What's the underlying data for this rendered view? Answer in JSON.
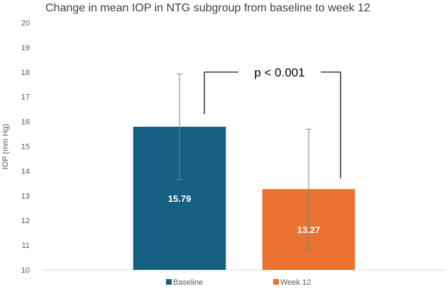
{
  "chart_data": {
    "type": "bar",
    "title": "Change in mean IOP in NTG subgroup from baseline to week 12",
    "xlabel": "",
    "ylabel": "IOP (mm Hg)",
    "ylim": [
      10,
      20
    ],
    "yticks": [
      10,
      11,
      12,
      13,
      14,
      15,
      16,
      17,
      18,
      19,
      20
    ],
    "grid": false,
    "legend_position": "bottom",
    "categories": [
      "Baseline",
      "Week 12"
    ],
    "series": [
      {
        "name": "Baseline",
        "category": "Baseline",
        "value": 15.79,
        "label": "15.79",
        "error_low": 13.65,
        "error_high": 17.93,
        "color": "#156082"
      },
      {
        "name": "Week 12",
        "category": "Week 12",
        "value": 13.27,
        "label": "13.27",
        "error_low": 10.86,
        "error_high": 15.69,
        "color": "#E97132"
      }
    ],
    "annotation": {
      "text": "p < 0.001",
      "bracket_top": 18.0,
      "left_end": 16.3,
      "right_end": 13.7
    }
  }
}
